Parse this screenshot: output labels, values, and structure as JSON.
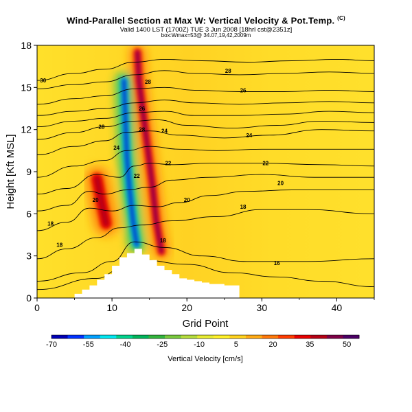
{
  "header": {
    "title": "Wind-Parallel Section at Max W: Vertical Velocity & Pot.Temp.",
    "title_mark": "(C)",
    "valid_line": "Valid 1400 LST (1700Z) TUE 3 Jun 2008 [18hrl cst@2351z]",
    "info_line": "box:Wmax=53@ 34.07,19,42,2009m"
  },
  "chart_data": {
    "type": "heatmap",
    "title": "Wind-Parallel Section at Max W: Vertical Velocity & Pot.Temp.",
    "xlabel": "Grid Point",
    "ylabel": "Height [Kft MSL]",
    "xlim": [
      0,
      45
    ],
    "ylim": [
      0,
      18
    ],
    "xticks": [
      0,
      10,
      20,
      30,
      40
    ],
    "yticks": [
      0,
      3,
      6,
      9,
      12,
      15,
      18
    ],
    "colorbar": {
      "label": "Vertical Velocity [cm/s]",
      "ticks": [
        -70,
        -55,
        -40,
        -25,
        -10,
        5,
        20,
        35,
        50
      ],
      "range": [
        -70,
        55
      ],
      "colors": [
        "#0000b4",
        "#0032ff",
        "#00a0ff",
        "#00e6f0",
        "#00d28c",
        "#00b45a",
        "#32b43c",
        "#78c83c",
        "#b4dc3c",
        "#e6eb32",
        "#fff028",
        "#ffd21e",
        "#ffaa14",
        "#ff780a",
        "#ff3c00",
        "#e60000",
        "#b40014",
        "#7d0046",
        "#4b0064"
      ]
    },
    "terrain_profile": {
      "x": [
        0,
        4,
        5,
        6,
        7,
        8,
        9,
        10,
        11,
        12,
        13,
        14,
        15,
        16,
        17,
        18,
        19,
        20,
        21,
        22,
        23,
        24,
        25,
        26,
        27,
        45
      ],
      "height": [
        0,
        0,
        0.3,
        0.6,
        0.9,
        1.3,
        1.7,
        2.3,
        2.9,
        3.2,
        3.5,
        3.1,
        2.7,
        2.3,
        2.0,
        1.7,
        1.4,
        1.3,
        1.2,
        1.1,
        1.0,
        1.0,
        0.9,
        0.9,
        0,
        0
      ]
    },
    "vertical_velocity_features": [
      {
        "kind": "updraft",
        "peak": 45,
        "points": [
          [
            13.4,
            17.5
          ],
          [
            13.6,
            15.5
          ],
          [
            14.2,
            13.0
          ],
          [
            14.8,
            10.5
          ],
          [
            15.4,
            8.0
          ],
          [
            15.9,
            5.5
          ],
          [
            16.6,
            3.3
          ]
        ]
      },
      {
        "kind": "downdraft",
        "peak": -65,
        "points": [
          [
            11.6,
            15.5
          ],
          [
            11.8,
            12.5
          ],
          [
            12.0,
            10.0
          ],
          [
            12.3,
            8.0
          ],
          [
            12.8,
            5.5
          ],
          [
            13.3,
            3.8
          ]
        ]
      },
      {
        "kind": "updraft",
        "peak": 38,
        "points": [
          [
            8.0,
            8.5
          ],
          [
            8.6,
            6.8
          ],
          [
            9.2,
            5.3
          ]
        ]
      }
    ],
    "theta_contours": [
      {
        "label": "16",
        "points": [
          [
            0,
            0.6
          ],
          [
            8,
            1.4
          ],
          [
            11,
            2.0
          ],
          [
            14,
            2.7
          ],
          [
            20,
            2.4
          ],
          [
            26,
            1.8
          ],
          [
            32,
            1.5
          ],
          [
            38,
            1.2
          ],
          [
            45,
            0.8
          ]
        ]
      },
      {
        "label": "18",
        "points": [
          [
            0,
            1.2
          ],
          [
            6,
            1.8
          ],
          [
            10,
            2.6
          ],
          [
            13,
            4.0
          ],
          [
            17,
            3.6
          ],
          [
            22,
            3.0
          ],
          [
            28,
            2.6
          ],
          [
            36,
            2.6
          ],
          [
            45,
            2.8
          ]
        ]
      },
      {
        "label": "18",
        "points": [
          [
            0,
            2.8
          ],
          [
            4,
            3.5
          ],
          [
            8,
            4.3
          ],
          [
            11,
            5.0
          ],
          [
            14,
            5.2
          ],
          [
            18,
            5.5
          ],
          [
            24,
            5.8
          ],
          [
            30,
            6.3
          ],
          [
            36,
            6.3
          ],
          [
            45,
            6.0
          ]
        ]
      },
      {
        "label": "18",
        "points": [
          [
            0,
            4.8
          ],
          [
            4,
            5.4
          ],
          [
            7,
            6.4
          ],
          [
            10,
            6.2
          ],
          [
            13,
            6.6
          ],
          [
            16,
            6.5
          ],
          [
            19,
            6.8
          ],
          [
            23,
            7.3
          ],
          [
            28,
            7.6
          ],
          [
            34,
            7.7
          ],
          [
            45,
            7.7
          ]
        ]
      },
      {
        "label": "20",
        "points": [
          [
            0,
            6.2
          ],
          [
            4,
            6.6
          ],
          [
            7,
            7.6
          ],
          [
            9,
            7.4
          ],
          [
            12,
            7.7
          ],
          [
            15,
            7.9
          ],
          [
            18,
            8.4
          ],
          [
            23,
            8.6
          ],
          [
            30,
            8.8
          ],
          [
            37,
            8.6
          ],
          [
            45,
            8.6
          ]
        ]
      },
      {
        "label": "22",
        "points": [
          [
            0,
            7.4
          ],
          [
            4,
            7.8
          ],
          [
            8,
            8.8
          ],
          [
            11,
            8.6
          ],
          [
            13,
            9.4
          ],
          [
            15,
            9.6
          ],
          [
            18,
            9.5
          ],
          [
            23,
            9.6
          ],
          [
            30,
            9.6
          ],
          [
            38,
            9.5
          ],
          [
            45,
            9.4
          ]
        ]
      },
      {
        "label": "22",
        "points": [
          [
            0,
            8.6
          ],
          [
            5,
            9.4
          ],
          [
            9,
            9.8
          ],
          [
            12,
            10.5
          ],
          [
            15,
            10.8
          ],
          [
            19,
            10.6
          ],
          [
            24,
            10.5
          ],
          [
            30,
            10.6
          ],
          [
            37,
            10.6
          ],
          [
            45,
            10.6
          ]
        ]
      },
      {
        "label": "24",
        "points": [
          [
            0,
            10.2
          ],
          [
            5,
            10.8
          ],
          [
            9,
            11.2
          ],
          [
            12,
            11.8
          ],
          [
            15,
            11.9
          ],
          [
            19,
            11.6
          ],
          [
            25,
            11.4
          ],
          [
            31,
            11.6
          ],
          [
            38,
            12.0
          ],
          [
            45,
            11.9
          ]
        ]
      },
      {
        "label": "24",
        "points": [
          [
            0,
            11.3
          ],
          [
            5,
            11.8
          ],
          [
            9,
            12.2
          ],
          [
            13,
            12.6
          ],
          [
            16,
            12.7
          ],
          [
            20,
            12.3
          ],
          [
            26,
            12.1
          ],
          [
            32,
            12.3
          ],
          [
            38,
            12.6
          ],
          [
            45,
            12.5
          ]
        ]
      },
      {
        "label": "26",
        "points": [
          [
            0,
            12.2
          ],
          [
            5,
            12.6
          ],
          [
            9,
            12.8
          ],
          [
            13,
            13.2
          ],
          [
            17,
            13.3
          ],
          [
            21,
            13.0
          ],
          [
            27,
            13.0
          ],
          [
            33,
            13.1
          ],
          [
            39,
            13.3
          ],
          [
            45,
            13.2
          ]
        ]
      },
      {
        "label": "26",
        "points": [
          [
            0,
            13.0
          ],
          [
            5,
            13.3
          ],
          [
            9,
            13.5
          ],
          [
            13,
            13.9
          ],
          [
            17,
            14.1
          ],
          [
            21,
            13.9
          ],
          [
            27,
            13.8
          ],
          [
            33,
            13.9
          ],
          [
            39,
            14.0
          ],
          [
            45,
            13.9
          ]
        ]
      },
      {
        "label": "26",
        "points": [
          [
            0,
            13.8
          ],
          [
            5,
            14.2
          ],
          [
            9,
            14.4
          ],
          [
            13,
            14.9
          ],
          [
            17,
            15.0
          ],
          [
            21,
            14.8
          ],
          [
            27,
            14.7
          ],
          [
            33,
            14.7
          ],
          [
            39,
            14.8
          ],
          [
            45,
            14.7
          ]
        ]
      },
      {
        "label": "28",
        "points": [
          [
            0,
            14.9
          ],
          [
            5,
            15.2
          ],
          [
            9,
            15.4
          ],
          [
            13,
            15.9
          ],
          [
            17,
            16.2
          ],
          [
            21,
            16.0
          ],
          [
            27,
            15.9
          ],
          [
            33,
            16.0
          ],
          [
            39,
            16.1
          ],
          [
            45,
            16.0
          ]
        ]
      },
      {
        "label": "30",
        "points": [
          [
            0,
            15.5
          ],
          [
            5,
            16.0
          ],
          [
            9,
            16.3
          ],
          [
            13,
            16.8
          ],
          [
            17,
            17.0
          ],
          [
            22,
            16.9
          ],
          [
            28,
            16.8
          ],
          [
            34,
            16.9
          ],
          [
            40,
            17.0
          ],
          [
            45,
            16.9
          ]
        ]
      }
    ],
    "contour_labels": [
      {
        "text": "30",
        "x": 0.8,
        "y": 15.5
      },
      {
        "text": "28",
        "x": 25.5,
        "y": 16.2
      },
      {
        "text": "28",
        "x": 14.8,
        "y": 15.4
      },
      {
        "text": "28",
        "x": 8.6,
        "y": 12.2
      },
      {
        "text": "28",
        "x": 14.0,
        "y": 12.0
      },
      {
        "text": "26",
        "x": 27.5,
        "y": 14.8
      },
      {
        "text": "26",
        "x": 14.0,
        "y": 13.5
      },
      {
        "text": "24",
        "x": 17.0,
        "y": 11.9
      },
      {
        "text": "24",
        "x": 28.3,
        "y": 11.6
      },
      {
        "text": "24",
        "x": 10.6,
        "y": 10.7
      },
      {
        "text": "22",
        "x": 13.3,
        "y": 8.7
      },
      {
        "text": "22",
        "x": 17.5,
        "y": 9.6
      },
      {
        "text": "22",
        "x": 30.5,
        "y": 9.6
      },
      {
        "text": "20",
        "x": 7.8,
        "y": 7.0
      },
      {
        "text": "20",
        "x": 20.0,
        "y": 7.0
      },
      {
        "text": "20",
        "x": 32.5,
        "y": 8.2
      },
      {
        "text": "18",
        "x": 27.5,
        "y": 6.5
      },
      {
        "text": "18",
        "x": 1.8,
        "y": 5.3
      },
      {
        "text": "18",
        "x": 3.0,
        "y": 3.8
      },
      {
        "text": "18",
        "x": 16.8,
        "y": 4.1
      },
      {
        "text": "16",
        "x": 32.0,
        "y": 2.5
      }
    ]
  }
}
